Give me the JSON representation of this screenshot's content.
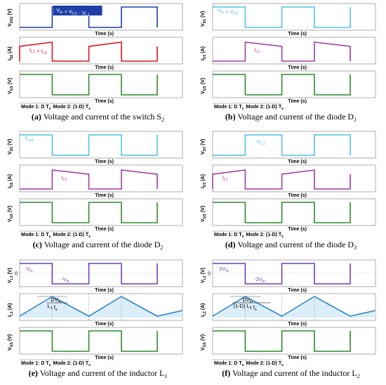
{
  "panels": [
    {
      "id": "a",
      "caption_letter": "(a)",
      "caption_text": " Voltage and current of the switch S",
      "caption_sub": "2",
      "plots": [
        {
          "ylabel": "V",
          "ysub": "DS2",
          "unit": "(V)",
          "color": "#1f3fa6",
          "kind": "vsquare_inv",
          "annotation": "V_in + V_C1 - V_L1"
        },
        {
          "ylabel": "I",
          "ysub": "S2",
          "unit": "(A)",
          "color": "#e0121b",
          "kind": "ramp_on",
          "annotation": "I_L1 + I_L2"
        },
        {
          "ylabel": "V",
          "ysub": "GS",
          "unit": "(V)",
          "color": "#2e8b2e",
          "kind": "gate",
          "annotation": ""
        }
      ],
      "time_label": "Time (s)",
      "mode1": "Mode 1: D T",
      "mode2": "Mode 2: (1-D) T",
      "mode_sub": "s"
    },
    {
      "id": "b",
      "caption_letter": "(b)",
      "caption_text": " Voltage and current of the diode D",
      "caption_sub": "1",
      "plots": [
        {
          "ylabel": "V",
          "ysub": "D1",
          "unit": "(V)",
          "color": "#4fc3e0",
          "kind": "vsquare_on",
          "annotation": "V_in + V_C1"
        },
        {
          "ylabel": "I",
          "ysub": "D1",
          "unit": "(A)",
          "color": "#a33aa6",
          "kind": "ramp_off",
          "annotation": "I_L1"
        },
        {
          "ylabel": "V",
          "ysub": "GS",
          "unit": "(V)",
          "color": "#2e8b2e",
          "kind": "gate",
          "annotation": ""
        }
      ],
      "time_label": "Time (s)",
      "mode1": "Mode 1: D T",
      "mode2": "Mode 2: (1-D) T",
      "mode_sub": "s"
    },
    {
      "id": "c",
      "caption_letter": "(c)",
      "caption_text": " Voltage and current of the diode D",
      "caption_sub": "2",
      "plots": [
        {
          "ylabel": "V",
          "ysub": "D2",
          "unit": "(V)",
          "color": "#4fc3e0",
          "kind": "vsquare_on",
          "annotation": "V_out"
        },
        {
          "ylabel": "I",
          "ysub": "D2",
          "unit": "(A)",
          "color": "#a33aa6",
          "kind": "ramp_off",
          "annotation": "I_L2"
        },
        {
          "ylabel": "V",
          "ysub": "GS",
          "unit": "(V)",
          "color": "#2e8b2e",
          "kind": "gate",
          "annotation": ""
        }
      ],
      "time_label": "Time (s)",
      "mode1": "Mode 1: D T",
      "mode2": "Mode 2: (1-D) T",
      "mode_sub": "s"
    },
    {
      "id": "d",
      "caption_letter": "(d)",
      "caption_text": " Voltage and current of the diode D",
      "caption_sub": "3",
      "plots": [
        {
          "ylabel": "V",
          "ysub": "D3",
          "unit": "(V)",
          "color": "#4fc3e0",
          "kind": "vsquare_inv",
          "annotation": "-V_C1"
        },
        {
          "ylabel": "I",
          "ysub": "D3",
          "unit": "(A)",
          "color": "#a33aa6",
          "kind": "ramp_on",
          "annotation": "I_L1"
        },
        {
          "ylabel": "V",
          "ysub": "GS",
          "unit": "(V)",
          "color": "#2e8b2e",
          "kind": "gate",
          "annotation": ""
        }
      ],
      "time_label": "Time (s)",
      "mode1": "Mode 1: D T",
      "mode2": "Mode 2: (1-D) T",
      "mode_sub": "s"
    },
    {
      "id": "e",
      "caption_letter": "(e)",
      "caption_text": " Voltage and current of the inductor L",
      "caption_sub": "1",
      "plots": [
        {
          "ylabel": "V",
          "ysub": "L1",
          "unit": "(V)",
          "color": "#6a3fb8",
          "kind": "vbipolar",
          "annotation": "V_in",
          "annotation2": "-V_in"
        },
        {
          "ylabel": "I",
          "ysub": "L1",
          "unit": "(A)",
          "color": "#2a84c8",
          "kind": "triangle",
          "annotation": "DV_in / L_1 f_s"
        },
        {
          "ylabel": "V",
          "ysub": "GS",
          "unit": "(V)",
          "color": "#2e8b2e",
          "kind": "gate",
          "annotation": ""
        }
      ],
      "time_label": "Time (s)",
      "mode1": "Mode 1: D T",
      "mode2": "Mode 2: (1-D) T",
      "mode_sub": "s"
    },
    {
      "id": "f",
      "caption_letter": "(f)",
      "caption_text": " Voltage and current of the inductor L",
      "caption_sub": "2",
      "plots": [
        {
          "ylabel": "V",
          "ysub": "L2",
          "unit": "(V)",
          "color": "#6a3fb8",
          "kind": "vbipolar",
          "annotation": "2V_in",
          "annotation2": "-2V_in"
        },
        {
          "ylabel": "I",
          "ysub": "L2",
          "unit": "(A)",
          "color": "#2a84c8",
          "kind": "triangle",
          "annotation": "DV_in / (1-D) L_2 f_s"
        },
        {
          "ylabel": "V",
          "ysub": "GS",
          "unit": "(V)",
          "color": "#2e8b2e",
          "kind": "gate",
          "annotation": ""
        }
      ],
      "time_label": "Time (s)",
      "mode1": "Mode 1: D T",
      "mode2": "Mode 2: (1-D) T",
      "mode_sub": "s"
    }
  ],
  "tick_zero": "0"
}
